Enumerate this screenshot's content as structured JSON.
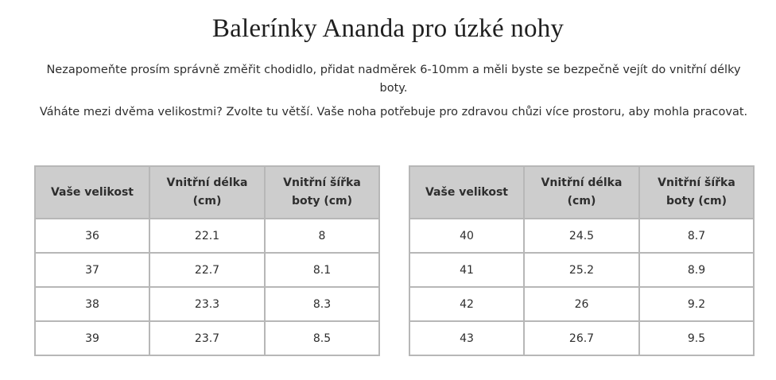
{
  "page": {
    "title": "Balerínky Ananda pro úzké nohy",
    "paragraph1": "Nezapomeňte prosím správně změřit chodidlo, přidat nadměrek 6-10mm a měli byste se bezpečně vejít do vnitřní délky boty.",
    "paragraph2": "Váháte mezi dvěma velikostmi? Zvolte tu větší. Vaše noha potřebuje pro zdravou chůzi více prostoru, aby mohla pracovat."
  },
  "tables": {
    "headers": [
      "Vaše velikost",
      "Vnitřní délka (cm)",
      "Vnitřní šířka boty (cm)"
    ],
    "left": {
      "rows": [
        [
          "36",
          "22.1",
          "8"
        ],
        [
          "37",
          "22.7",
          "8.1"
        ],
        [
          "38",
          "23.3",
          "8.3"
        ],
        [
          "39",
          "23.7",
          "8.5"
        ]
      ]
    },
    "right": {
      "rows": [
        [
          "40",
          "24.5",
          "8.7"
        ],
        [
          "41",
          "25.2",
          "8.9"
        ],
        [
          "42",
          "26",
          "9.2"
        ],
        [
          "43",
          "26.7",
          "9.5"
        ]
      ]
    }
  },
  "colors": {
    "header_background": "#cdcdcd",
    "border": "#b7b7b7",
    "text": "#2e2e2e"
  }
}
